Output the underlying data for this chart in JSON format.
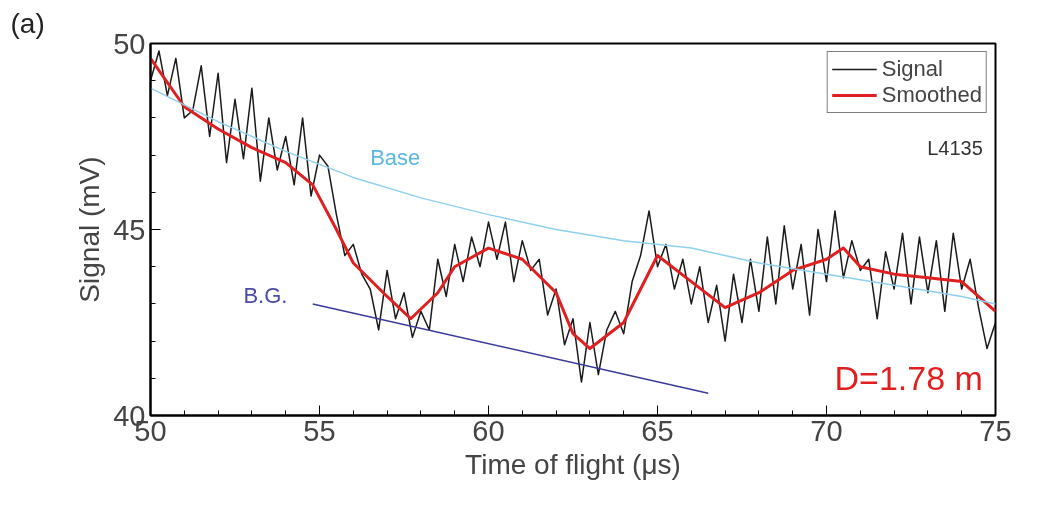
{
  "chart_data": {
    "type": "line",
    "xlabel": "Time of flight (μs)",
    "ylabel": "Signal (mV)",
    "xlim": [
      50,
      75
    ],
    "ylim": [
      40,
      50
    ],
    "xticks": [
      50,
      55,
      60,
      65,
      70,
      75
    ],
    "yticks": [
      40,
      45,
      50
    ],
    "grid": false,
    "legend": "top right",
    "marker": "none",
    "line_style": "solid",
    "series": [
      {
        "name": "Signal",
        "color": "#1a1a1a",
        "x": [
          50.0,
          50.25,
          50.5,
          50.75,
          51.0,
          51.25,
          51.5,
          51.75,
          52.0,
          52.25,
          52.5,
          52.75,
          53.0,
          53.25,
          53.5,
          53.75,
          54.0,
          54.25,
          54.5,
          54.75,
          55.0,
          55.25,
          55.5,
          55.75,
          56.0,
          56.25,
          56.5,
          56.75,
          57.0,
          57.25,
          57.5,
          57.75,
          58.0,
          58.25,
          58.5,
          58.75,
          59.0,
          59.25,
          59.5,
          59.75,
          60.0,
          60.25,
          60.5,
          60.75,
          61.0,
          61.25,
          61.5,
          61.75,
          62.0,
          62.25,
          62.5,
          62.75,
          63.0,
          63.25,
          63.5,
          63.75,
          64.0,
          64.25,
          64.5,
          64.75,
          65.0,
          65.25,
          65.5,
          65.75,
          66.0,
          66.25,
          66.5,
          66.75,
          67.0,
          67.25,
          67.5,
          67.75,
          68.0,
          68.25,
          68.5,
          68.75,
          69.0,
          69.25,
          69.5,
          69.75,
          70.0,
          70.25,
          70.5,
          70.75,
          71.0,
          71.25,
          71.5,
          71.75,
          72.0,
          72.25,
          72.5,
          72.75,
          73.0,
          73.25,
          73.5,
          73.75,
          74.0,
          74.25,
          74.5,
          74.75,
          75.0
        ],
        "values": [
          49.0,
          49.8,
          48.6,
          49.6,
          48.0,
          48.2,
          49.4,
          47.5,
          49.2,
          46.8,
          48.5,
          46.9,
          48.8,
          46.3,
          48.0,
          46.6,
          47.5,
          46.2,
          48.0,
          45.9,
          47.0,
          46.7,
          45.4,
          44.3,
          44.6,
          43.8,
          43.4,
          42.3,
          43.9,
          42.6,
          43.3,
          42.1,
          42.8,
          42.3,
          44.2,
          43.2,
          44.6,
          43.6,
          44.8,
          44.0,
          45.2,
          44.2,
          45.2,
          43.6,
          44.7,
          43.9,
          44.2,
          42.7,
          43.4,
          41.9,
          42.6,
          40.9,
          42.5,
          41.1,
          42.3,
          42.8,
          42.2,
          43.6,
          44.3,
          45.5,
          44.0,
          44.6,
          43.4,
          44.2,
          43.0,
          44.0,
          42.5,
          43.5,
          42.0,
          43.8,
          42.5,
          44.2,
          42.8,
          44.8,
          43.0,
          45.1,
          43.4,
          44.6,
          42.7,
          45.0,
          43.6,
          45.5,
          43.7,
          44.7,
          43.9,
          44.2,
          42.6,
          44.4,
          43.4,
          44.9,
          43.0,
          44.8,
          43.3,
          44.7,
          42.8,
          44.9,
          43.4,
          44.2,
          42.9,
          41.8,
          42.5
        ]
      },
      {
        "name": "Smoothed",
        "color": "#e02020",
        "x": [
          50,
          51,
          52,
          53,
          54,
          54.8,
          55.5,
          56,
          57,
          57.7,
          58.5,
          59,
          60,
          61,
          62,
          62.5,
          63,
          64,
          65,
          66,
          67,
          68,
          69,
          70,
          70.5,
          71,
          72,
          73,
          74,
          75
        ],
        "values": [
          49.6,
          48.3,
          47.7,
          47.2,
          46.8,
          46.2,
          45.0,
          44.1,
          43.2,
          42.6,
          43.3,
          44.0,
          44.5,
          44.2,
          43.3,
          42.2,
          41.8,
          42.5,
          44.3,
          43.6,
          42.9,
          43.3,
          43.9,
          44.2,
          44.5,
          44.0,
          43.8,
          43.7,
          43.6,
          42.8
        ]
      },
      {
        "color": "#8fd0ee",
        "x": [
          50,
          52,
          54,
          56,
          58,
          60,
          62,
          64,
          66,
          68,
          70,
          72,
          74,
          75
        ],
        "values": [
          48.8,
          47.9,
          47.1,
          46.4,
          45.85,
          45.4,
          45.0,
          44.7,
          44.5,
          44.1,
          43.8,
          43.5,
          43.2,
          43.0
        ]
      },
      {
        "color": "#3a3a9a",
        "x": [
          54.8,
          66.5
        ],
        "values": [
          43.0,
          40.6
        ]
      }
    ],
    "annotations": [
      "Base",
      "B.G.",
      "(a)",
      "L4135",
      "D=1.78 m"
    ]
  }
}
